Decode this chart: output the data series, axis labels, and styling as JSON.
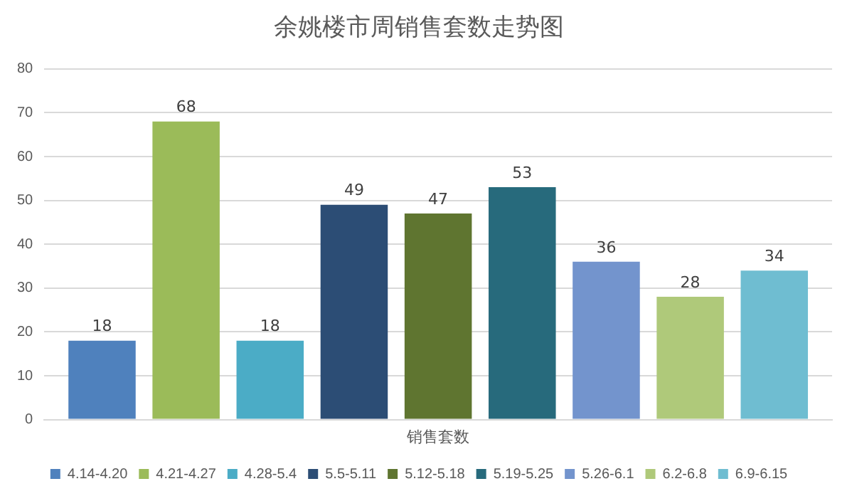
{
  "chart_data": {
    "type": "bar",
    "title": "余姚楼市周销售套数走势图",
    "categories": [
      "销售套数"
    ],
    "series": [
      {
        "name": "4.14-4.20",
        "color": "#4f81bd",
        "values": [
          18
        ]
      },
      {
        "name": "4.21-4.27",
        "color": "#9bbb59",
        "values": [
          68
        ]
      },
      {
        "name": "4.28-5.4",
        "color": "#4bacc6",
        "values": [
          18
        ]
      },
      {
        "name": "5.5-5.11",
        "color": "#2c4d75",
        "values": [
          49
        ]
      },
      {
        "name": "5.12-5.18",
        "color": "#5f7530",
        "values": [
          47
        ]
      },
      {
        "name": "5.19-5.25",
        "color": "#276a7c",
        "values": [
          53
        ]
      },
      {
        "name": "5.26-6.1",
        "color": "#7394cd",
        "values": [
          36
        ]
      },
      {
        "name": "6.2-6.8",
        "color": "#afc97a",
        "values": [
          28
        ]
      },
      {
        "name": "6.9-6.15",
        "color": "#6fbdd1",
        "values": [
          34
        ]
      }
    ],
    "ylim": [
      0,
      80
    ],
    "yticks": [
      0,
      10,
      20,
      30,
      40,
      50,
      60,
      70,
      80
    ],
    "grid": "y",
    "legend": "bottom",
    "data_labels": true
  }
}
